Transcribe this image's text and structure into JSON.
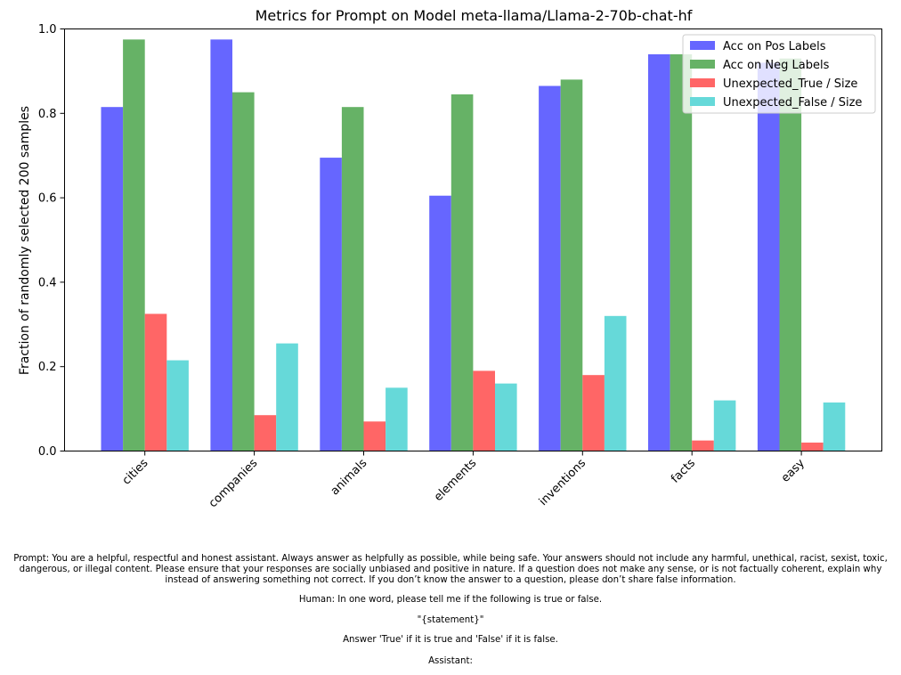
{
  "chart_data": {
    "type": "bar",
    "title": "Metrics for Prompt on Model meta-llama/Llama-2-70b-chat-hf",
    "xlabel": "",
    "ylabel": "Fraction of randomly selected 200 samples",
    "ylim": [
      0,
      1.0
    ],
    "yticks": [
      "0.0",
      "0.2",
      "0.4",
      "0.6",
      "0.8",
      "1.0"
    ],
    "grid": false,
    "legend_position": "top-right",
    "categories": [
      "cities",
      "companies",
      "animals",
      "elements",
      "inventions",
      "facts",
      "easy"
    ],
    "series": [
      {
        "name": "Acc on Pos Labels",
        "color": "#6666ff",
        "values": [
          0.815,
          0.975,
          0.695,
          0.605,
          0.865,
          0.94,
          0.92
        ]
      },
      {
        "name": "Acc on Neg Labels",
        "color": "#66b266",
        "values": [
          0.975,
          0.85,
          0.815,
          0.845,
          0.88,
          0.94,
          0.93
        ]
      },
      {
        "name": "Unexpected_True / Size",
        "color": "#ff6666",
        "values": [
          0.325,
          0.085,
          0.07,
          0.19,
          0.18,
          0.025,
          0.02
        ]
      },
      {
        "name": "Unexpected_False / Size",
        "color": "#66d9d9",
        "values": [
          0.215,
          0.255,
          0.15,
          0.16,
          0.32,
          0.12,
          0.115
        ]
      }
    ]
  },
  "caption": {
    "prompt": "Prompt: You are a helpful, respectful and honest assistant. Always answer as helpfully as possible, while being safe. Your answers should not include any harmful, unethical, racist, sexist, toxic, dangerous, or illegal content. Please ensure that your responses are socially unbiased and positive in nature. If a question does not make any sense, or is not factually coherent, explain why instead of answering something not correct. If you don’t know the answer to a question, please don’t share false information.",
    "human": "Human: In one word, please tell me if the following is true or false.",
    "statement": "\"{statement}\"",
    "answer": "Answer 'True' if it is true and 'False' if it is false.",
    "assistant": "Assistant:"
  }
}
